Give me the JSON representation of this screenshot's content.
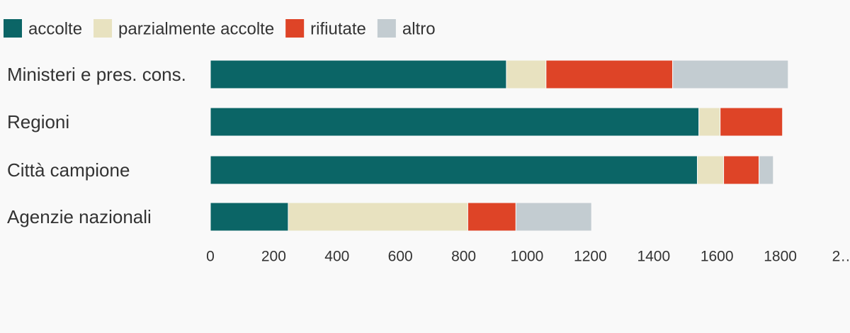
{
  "chart_data": {
    "type": "stacked-bar-horizontal",
    "categories": [
      "Ministeri e pres. cons.",
      "Regioni",
      "Città campione",
      "Agenzie nazionali"
    ],
    "series": [
      {
        "name": "accolte",
        "color": "#0b6566",
        "values": [
          935,
          1543,
          1538,
          246
        ]
      },
      {
        "name": "parzialmente accolte",
        "color": "#e8e2c0",
        "values": [
          125,
          67,
          83,
          567
        ]
      },
      {
        "name": "rifiutate",
        "color": "#de4427",
        "values": [
          400,
          197,
          112,
          152
        ]
      },
      {
        "name": "altro",
        "color": "#c3ccd1",
        "values": [
          365,
          0,
          45,
          239
        ]
      }
    ],
    "xlim": [
      0,
      2000
    ],
    "xticks": [
      0,
      200,
      400,
      600,
      800,
      1000,
      1200,
      1400,
      1600,
      1800,
      {
        "value": 2000,
        "label": "2…"
      }
    ],
    "legend": "top-left"
  }
}
